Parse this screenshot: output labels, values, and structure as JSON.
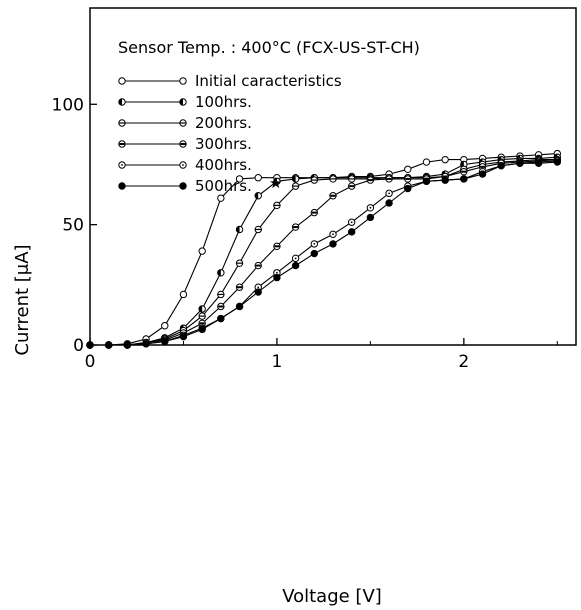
{
  "chart_data": {
    "type": "line",
    "title": "Sensor Temp. : 400°C (FCX-US-ST-CH)",
    "xlabel": "Voltage [V]",
    "ylabel": "Current [μA]",
    "xlim": [
      0,
      2.6
    ],
    "ylim": [
      0,
      140
    ],
    "x_ticks": [
      "0",
      "1",
      "2"
    ],
    "y_ticks": [
      "0",
      "50",
      "100"
    ],
    "grid": false,
    "legend_position": "top-left",
    "series": [
      {
        "name": "Initial caracteristics",
        "marker": "open",
        "x": [
          0,
          0.1,
          0.2,
          0.3,
          0.4,
          0.5,
          0.6,
          0.7,
          0.8,
          0.9,
          1.0,
          1.1,
          1.2,
          1.3,
          1.4,
          1.5,
          1.6,
          1.7,
          1.8,
          1.9,
          2.0,
          2.1,
          2.2,
          2.3,
          2.4,
          2.5
        ],
        "y": [
          0,
          0,
          0.5,
          2.5,
          8,
          21,
          39,
          61,
          69,
          69.5,
          69.5,
          69.5,
          69.5,
          69.5,
          70,
          70,
          71,
          73,
          76,
          77,
          77,
          77.5,
          78,
          78.5,
          79,
          79.5
        ]
      },
      {
        "name": "100hrs.",
        "marker": "left-half",
        "x": [
          0,
          0.1,
          0.2,
          0.3,
          0.4,
          0.5,
          0.6,
          0.7,
          0.8,
          0.9,
          1.0,
          1.1,
          1.2,
          1.3,
          1.4,
          1.5,
          1.6,
          1.7,
          1.8,
          1.9,
          2.0,
          2.1,
          2.2,
          2.3,
          2.4,
          2.5
        ],
        "y": [
          0,
          0,
          0,
          1,
          3,
          7,
          15,
          30,
          48,
          62,
          68,
          69,
          69.5,
          69.5,
          69.5,
          69.5,
          69.5,
          69.5,
          70,
          71,
          75,
          76,
          77,
          77.5,
          77.5,
          78
        ]
      },
      {
        "name": "200hrs.",
        "marker": "horizontal-line",
        "x": [
          0,
          0.1,
          0.2,
          0.3,
          0.4,
          0.5,
          0.6,
          0.7,
          0.8,
          0.9,
          1.0,
          1.1,
          1.2,
          1.3,
          1.4,
          1.5,
          1.6,
          1.7,
          1.8,
          1.9,
          2.0,
          2.1,
          2.2,
          2.3,
          2.4,
          2.5
        ],
        "y": [
          0,
          0,
          0,
          1,
          2.5,
          6,
          12,
          21,
          34,
          48,
          58,
          66,
          68.5,
          69,
          69,
          69,
          69.5,
          69.5,
          69.5,
          70,
          73,
          75,
          76,
          76.5,
          77,
          77
        ]
      },
      {
        "name": "300hrs.",
        "marker": "center-bar",
        "x": [
          0,
          0.1,
          0.2,
          0.3,
          0.4,
          0.5,
          0.6,
          0.7,
          0.8,
          0.9,
          1.0,
          1.1,
          1.2,
          1.3,
          1.4,
          1.5,
          1.6,
          1.7,
          1.8,
          1.9,
          2.0,
          2.1,
          2.2,
          2.3,
          2.4,
          2.5
        ],
        "y": [
          0,
          0,
          0,
          1,
          2,
          5,
          9,
          16,
          24,
          33,
          41,
          49,
          55,
          62,
          66,
          68.5,
          69,
          69,
          69,
          70,
          72,
          74,
          75.5,
          76,
          76.5,
          77
        ]
      },
      {
        "name": "400hrs.",
        "marker": "dotted",
        "x": [
          0,
          0.1,
          0.2,
          0.3,
          0.4,
          0.5,
          0.6,
          0.7,
          0.8,
          0.9,
          1.0,
          1.1,
          1.2,
          1.3,
          1.4,
          1.5,
          1.6,
          1.7,
          1.8,
          1.9,
          2.0,
          2.1,
          2.2,
          2.3,
          2.4,
          2.5
        ],
        "y": [
          0,
          0,
          0,
          0.5,
          1.5,
          4,
          7,
          11,
          16,
          24,
          30,
          36,
          42,
          46,
          51,
          57,
          63,
          66,
          68,
          68.5,
          69,
          72,
          74.5,
          75.5,
          76,
          76.5
        ]
      },
      {
        "name": "500hrs.",
        "marker": "filled",
        "x": [
          0,
          0.1,
          0.2,
          0.3,
          0.4,
          0.5,
          0.6,
          0.7,
          0.8,
          0.9,
          1.0,
          1.1,
          1.2,
          1.3,
          1.4,
          1.5,
          1.6,
          1.7,
          1.8,
          1.9,
          2.0,
          2.1,
          2.2,
          2.3,
          2.4,
          2.5
        ],
        "y": [
          0,
          0,
          0,
          0.5,
          1.5,
          3.5,
          6.5,
          11,
          16,
          22,
          28,
          33,
          38,
          42,
          47,
          53,
          59,
          65,
          68,
          68.5,
          69,
          71,
          74.5,
          75.5,
          75.5,
          76
        ]
      }
    ],
    "legend_suffix_500": "★"
  }
}
